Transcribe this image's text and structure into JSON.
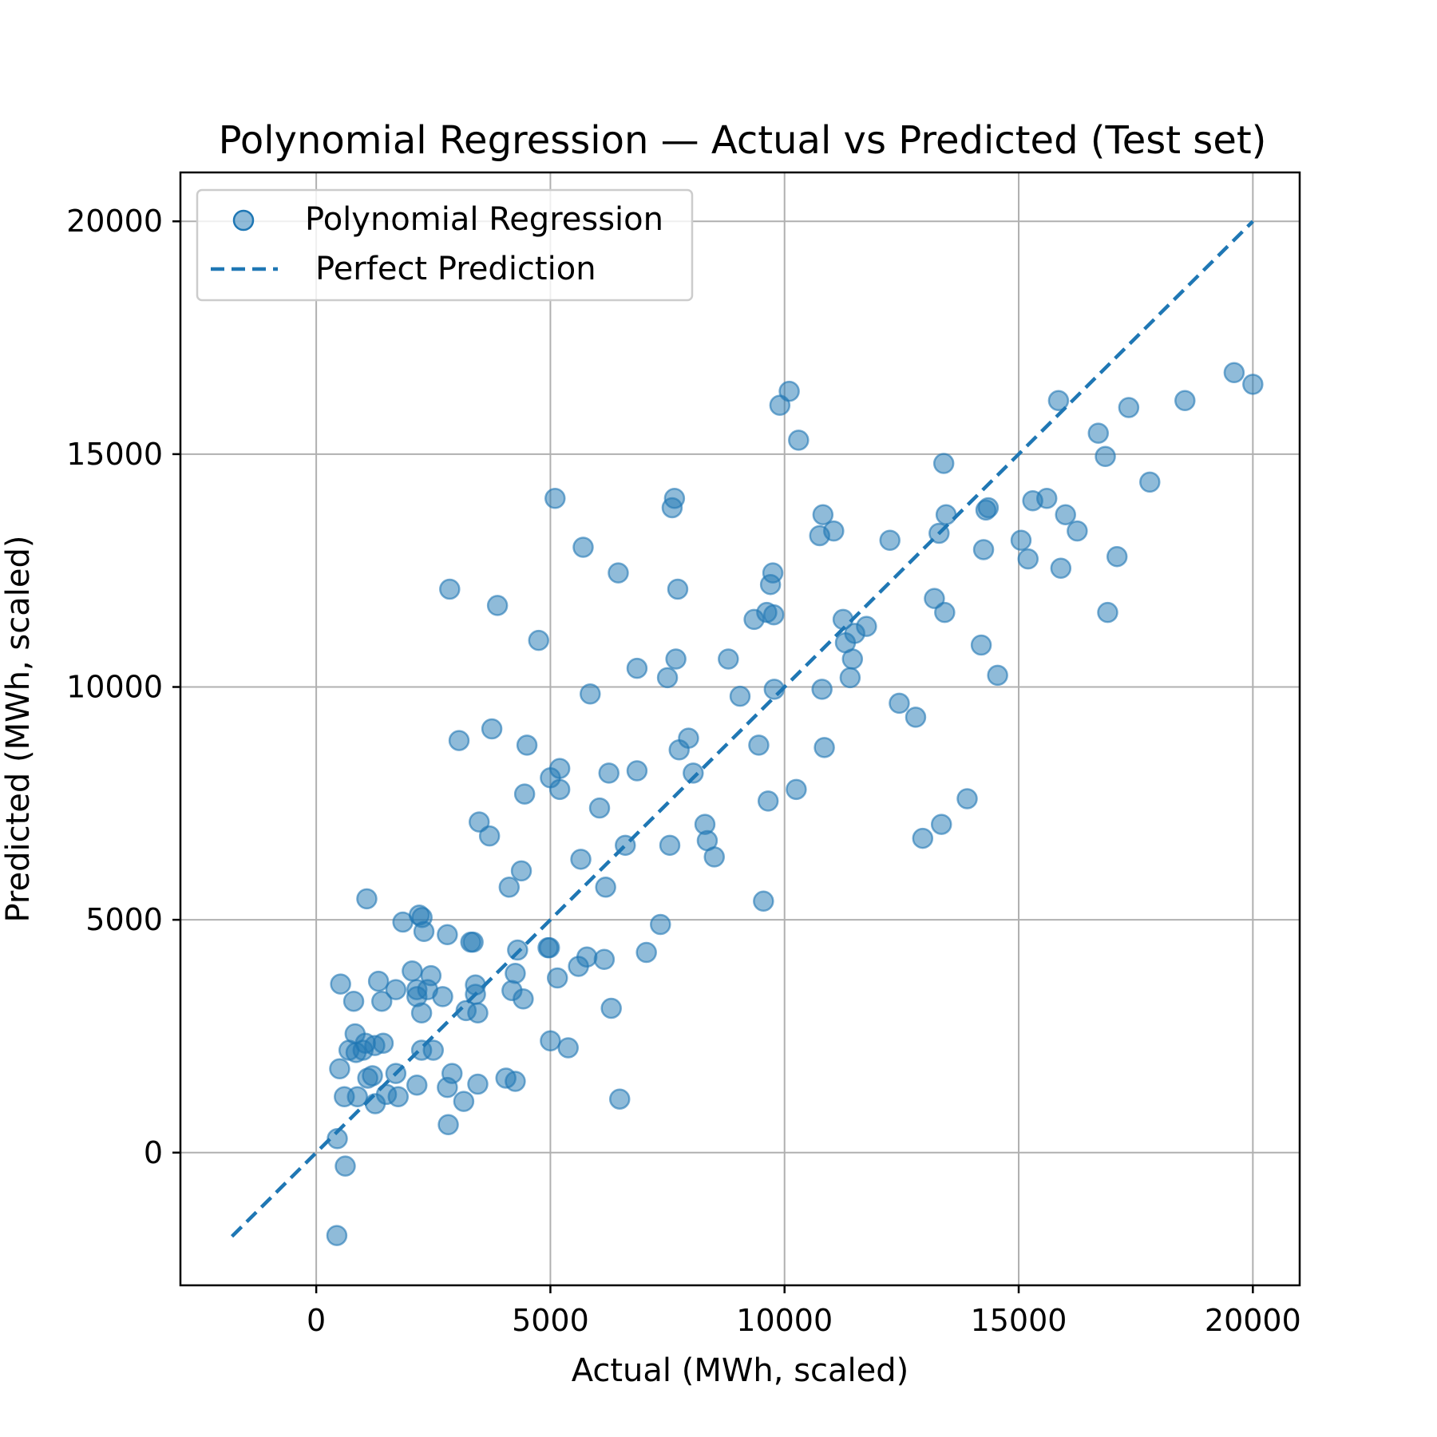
{
  "chart_data": {
    "type": "scatter",
    "title": "Polynomial Regression — Actual vs Predicted (Test set)",
    "xlabel": "Actual (MWh, scaled)",
    "ylabel": "Predicted (MWh, scaled)",
    "xlim": [
      -2900,
      21000
    ],
    "ylim": [
      -2850,
      21050
    ],
    "xticks": [
      0,
      5000,
      10000,
      15000,
      20000
    ],
    "yticks": [
      0,
      5000,
      10000,
      15000,
      20000
    ],
    "xtick_labels": [
      "0",
      "5000",
      "10000",
      "15000",
      "20000"
    ],
    "ytick_labels": [
      "0",
      "5000",
      "10000",
      "15000",
      "20000"
    ],
    "grid": true,
    "legend_position": "top-left",
    "colors": {
      "point": "#1f77b4",
      "line": "#1f77b4"
    },
    "series": [
      {
        "name": "Polynomial Regression",
        "kind": "scatter",
        "points": [
          [
            440,
            -1780
          ],
          [
            450,
            300
          ],
          [
            520,
            3620
          ],
          [
            500,
            1800
          ],
          [
            620,
            -290
          ],
          [
            600,
            1200
          ],
          [
            700,
            2200
          ],
          [
            800,
            3250
          ],
          [
            830,
            2550
          ],
          [
            850,
            2150
          ],
          [
            880,
            1200
          ],
          [
            1000,
            2200
          ],
          [
            1050,
            2350
          ],
          [
            1080,
            5450
          ],
          [
            1100,
            1600
          ],
          [
            1200,
            1650
          ],
          [
            1250,
            2300
          ],
          [
            1260,
            1050
          ],
          [
            1330,
            3680
          ],
          [
            1400,
            3250
          ],
          [
            1430,
            2350
          ],
          [
            1500,
            1250
          ],
          [
            1700,
            1700
          ],
          [
            1700,
            3500
          ],
          [
            1750,
            1200
          ],
          [
            1850,
            4950
          ],
          [
            2050,
            3900
          ],
          [
            2150,
            3500
          ],
          [
            2150,
            3350
          ],
          [
            2150,
            1450
          ],
          [
            2200,
            5100
          ],
          [
            2250,
            2200
          ],
          [
            2250,
            3000
          ],
          [
            2260,
            5050
          ],
          [
            2300,
            4750
          ],
          [
            2380,
            3500
          ],
          [
            2450,
            3800
          ],
          [
            2500,
            2200
          ],
          [
            2700,
            3350
          ],
          [
            2800,
            4680
          ],
          [
            2800,
            1400
          ],
          [
            2820,
            600
          ],
          [
            2850,
            12100
          ],
          [
            2900,
            1700
          ],
          [
            3050,
            8850
          ],
          [
            3150,
            1100
          ],
          [
            3200,
            3050
          ],
          [
            3300,
            4520
          ],
          [
            3350,
            4520
          ],
          [
            3400,
            3400
          ],
          [
            3400,
            3600
          ],
          [
            3450,
            3000
          ],
          [
            3450,
            1470
          ],
          [
            3480,
            7100
          ],
          [
            3700,
            6800
          ],
          [
            3750,
            9100
          ],
          [
            3870,
            11750
          ],
          [
            4050,
            1600
          ],
          [
            4120,
            5700
          ],
          [
            4180,
            3480
          ],
          [
            4250,
            3850
          ],
          [
            4250,
            1530
          ],
          [
            4300,
            4350
          ],
          [
            4380,
            6050
          ],
          [
            4420,
            3300
          ],
          [
            4450,
            7700
          ],
          [
            4500,
            8750
          ],
          [
            4750,
            11000
          ],
          [
            4950,
            4400
          ],
          [
            4980,
            4400
          ],
          [
            5000,
            2400
          ],
          [
            5000,
            8050
          ],
          [
            5100,
            14050
          ],
          [
            5150,
            3750
          ],
          [
            5200,
            7800
          ],
          [
            5200,
            8250
          ],
          [
            5380,
            2250
          ],
          [
            5600,
            4000
          ],
          [
            5650,
            6300
          ],
          [
            5700,
            13000
          ],
          [
            5780,
            4200
          ],
          [
            5850,
            9850
          ],
          [
            6050,
            7400
          ],
          [
            6150,
            4150
          ],
          [
            6180,
            5700
          ],
          [
            6250,
            8150
          ],
          [
            6300,
            3100
          ],
          [
            6450,
            12450
          ],
          [
            6480,
            1150
          ],
          [
            6600,
            6600
          ],
          [
            6850,
            10400
          ],
          [
            6850,
            8200
          ],
          [
            7050,
            4300
          ],
          [
            7350,
            4900
          ],
          [
            7500,
            10200
          ],
          [
            7550,
            6600
          ],
          [
            7600,
            13850
          ],
          [
            7650,
            14050
          ],
          [
            7680,
            10600
          ],
          [
            7720,
            12100
          ],
          [
            7750,
            8650
          ],
          [
            7950,
            8900
          ],
          [
            8050,
            8150
          ],
          [
            8300,
            7050
          ],
          [
            8350,
            6700
          ],
          [
            8500,
            6350
          ],
          [
            8800,
            10600
          ],
          [
            9050,
            9800
          ],
          [
            9350,
            11450
          ],
          [
            9450,
            8750
          ],
          [
            9550,
            5400
          ],
          [
            9620,
            11600
          ],
          [
            9650,
            7550
          ],
          [
            9700,
            12200
          ],
          [
            9750,
            12450
          ],
          [
            9770,
            11550
          ],
          [
            9780,
            9950
          ],
          [
            9900,
            16050
          ],
          [
            10100,
            16350
          ],
          [
            10250,
            7800
          ],
          [
            10300,
            15300
          ],
          [
            10750,
            13250
          ],
          [
            10800,
            9950
          ],
          [
            10820,
            13700
          ],
          [
            10850,
            8700
          ],
          [
            11050,
            13350
          ],
          [
            11250,
            11450
          ],
          [
            11300,
            10950
          ],
          [
            11400,
            10200
          ],
          [
            11450,
            10600
          ],
          [
            11500,
            11150
          ],
          [
            11750,
            11300
          ],
          [
            12250,
            13150
          ],
          [
            12450,
            9650
          ],
          [
            12800,
            9350
          ],
          [
            12950,
            6750
          ],
          [
            13200,
            11900
          ],
          [
            13300,
            13300
          ],
          [
            13350,
            7050
          ],
          [
            13400,
            14800
          ],
          [
            13420,
            11600
          ],
          [
            13450,
            13700
          ],
          [
            13900,
            7600
          ],
          [
            14200,
            10900
          ],
          [
            14250,
            12950
          ],
          [
            14300,
            13800
          ],
          [
            14350,
            13850
          ],
          [
            14550,
            10250
          ],
          [
            15050,
            13150
          ],
          [
            15200,
            12750
          ],
          [
            15300,
            14000
          ],
          [
            15600,
            14050
          ],
          [
            15850,
            16150
          ],
          [
            15900,
            12550
          ],
          [
            16000,
            13700
          ],
          [
            16250,
            13350
          ],
          [
            16700,
            15450
          ],
          [
            16850,
            14950
          ],
          [
            16900,
            11600
          ],
          [
            17100,
            12800
          ],
          [
            17350,
            16000
          ],
          [
            17800,
            14400
          ],
          [
            18550,
            16150
          ],
          [
            19600,
            16750
          ],
          [
            20000,
            16500
          ]
        ]
      },
      {
        "name": "Perfect Prediction",
        "kind": "line",
        "points": [
          [
            -1800,
            -1800
          ],
          [
            20000,
            20000
          ]
        ]
      }
    ],
    "legend": [
      {
        "label": "Polynomial Regression",
        "marker": "circle"
      },
      {
        "label": "Perfect Prediction",
        "marker": "dashed-line"
      }
    ]
  }
}
